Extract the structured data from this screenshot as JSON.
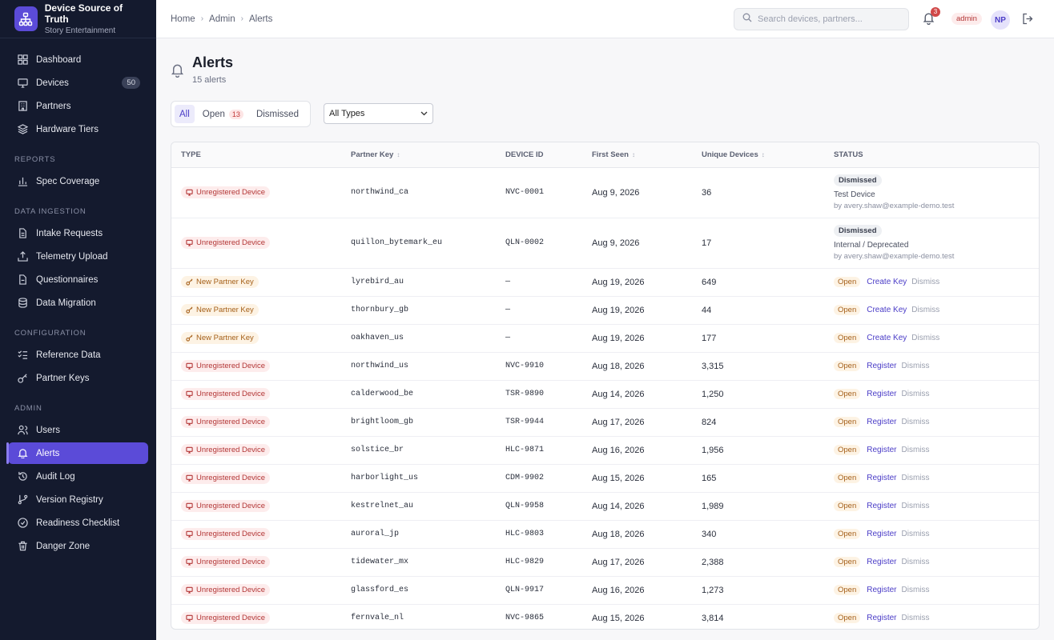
{
  "brand": {
    "title": "Device Source of Truth",
    "subtitle": "Story Entertainment"
  },
  "sidebar": {
    "main": [
      {
        "label": "Dashboard",
        "icon": "dashboard-icon"
      },
      {
        "label": "Devices",
        "icon": "monitor-icon",
        "badge": "50"
      },
      {
        "label": "Partners",
        "icon": "building-icon"
      },
      {
        "label": "Hardware Tiers",
        "icon": "layers-icon"
      }
    ],
    "reports_label": "REPORTS",
    "reports": [
      {
        "label": "Spec Coverage",
        "icon": "bar-chart-icon"
      }
    ],
    "ingestion_label": "DATA INGESTION",
    "ingestion": [
      {
        "label": "Intake Requests",
        "icon": "file-icon"
      },
      {
        "label": "Telemetry Upload",
        "icon": "upload-icon"
      },
      {
        "label": "Questionnaires",
        "icon": "clipboard-icon"
      },
      {
        "label": "Data Migration",
        "icon": "database-icon"
      }
    ],
    "config_label": "CONFIGURATION",
    "config": [
      {
        "label": "Reference Data",
        "icon": "list-check-icon"
      },
      {
        "label": "Partner Keys",
        "icon": "key-icon"
      }
    ],
    "admin_label": "ADMIN",
    "admin": [
      {
        "label": "Users",
        "icon": "users-icon"
      },
      {
        "label": "Alerts",
        "icon": "bell-icon",
        "active": true
      },
      {
        "label": "Audit Log",
        "icon": "history-icon"
      },
      {
        "label": "Version Registry",
        "icon": "git-branch-icon"
      },
      {
        "label": "Readiness Checklist",
        "icon": "check-circle-icon"
      },
      {
        "label": "Danger Zone",
        "icon": "trash-icon"
      }
    ]
  },
  "breadcrumb": [
    "Home",
    "Admin",
    "Alerts"
  ],
  "search": {
    "placeholder": "Search devices, partners..."
  },
  "notifications": {
    "count": "3"
  },
  "user": {
    "role": "admin",
    "initials": "NP"
  },
  "page": {
    "title": "Alerts",
    "subtitle": "15 alerts"
  },
  "filters": {
    "tabs": [
      {
        "label": "All",
        "active": true
      },
      {
        "label": "Open",
        "count": "13"
      },
      {
        "label": "Dismissed"
      }
    ],
    "type_select": "All Types"
  },
  "table": {
    "columns": [
      "TYPE",
      "Partner Key",
      "DEVICE ID",
      "First Seen",
      "Unique Devices",
      "STATUS"
    ],
    "rows": [
      {
        "type": "Unregistered Device",
        "kind": "unreg",
        "partner_key": "northwind_ca",
        "device_id": "NVC-0001",
        "first_seen": "Aug 9, 2026",
        "unique": "36",
        "status": "Dismissed",
        "reason": "Test Device",
        "by": "by avery.shaw@example-demo.test"
      },
      {
        "type": "Unregistered Device",
        "kind": "unreg",
        "partner_key": "quillon_bytemark_eu",
        "device_id": "QLN-0002",
        "first_seen": "Aug 9, 2026",
        "unique": "17",
        "status": "Dismissed",
        "reason": "Internal / Deprecated",
        "by": "by avery.shaw@example-demo.test"
      },
      {
        "type": "New Partner Key",
        "kind": "newkey",
        "partner_key": "lyrebird_au",
        "device_id": "—",
        "first_seen": "Aug 19, 2026",
        "unique": "649",
        "status": "Open",
        "action": "Create Key",
        "dismiss": "Dismiss"
      },
      {
        "type": "New Partner Key",
        "kind": "newkey",
        "partner_key": "thornbury_gb",
        "device_id": "—",
        "first_seen": "Aug 19, 2026",
        "unique": "44",
        "status": "Open",
        "action": "Create Key",
        "dismiss": "Dismiss"
      },
      {
        "type": "New Partner Key",
        "kind": "newkey",
        "partner_key": "oakhaven_us",
        "device_id": "—",
        "first_seen": "Aug 19, 2026",
        "unique": "177",
        "status": "Open",
        "action": "Create Key",
        "dismiss": "Dismiss"
      },
      {
        "type": "Unregistered Device",
        "kind": "unreg",
        "partner_key": "northwind_us",
        "device_id": "NVC-9910",
        "first_seen": "Aug 18, 2026",
        "unique": "3,315",
        "status": "Open",
        "action": "Register",
        "dismiss": "Dismiss"
      },
      {
        "type": "Unregistered Device",
        "kind": "unreg",
        "partner_key": "calderwood_be",
        "device_id": "TSR-9890",
        "first_seen": "Aug 14, 2026",
        "unique": "1,250",
        "status": "Open",
        "action": "Register",
        "dismiss": "Dismiss"
      },
      {
        "type": "Unregistered Device",
        "kind": "unreg",
        "partner_key": "brightloom_gb",
        "device_id": "TSR-9944",
        "first_seen": "Aug 17, 2026",
        "unique": "824",
        "status": "Open",
        "action": "Register",
        "dismiss": "Dismiss"
      },
      {
        "type": "Unregistered Device",
        "kind": "unreg",
        "partner_key": "solstice_br",
        "device_id": "HLC-9871",
        "first_seen": "Aug 16, 2026",
        "unique": "1,956",
        "status": "Open",
        "action": "Register",
        "dismiss": "Dismiss"
      },
      {
        "type": "Unregistered Device",
        "kind": "unreg",
        "partner_key": "harborlight_us",
        "device_id": "CDM-9902",
        "first_seen": "Aug 15, 2026",
        "unique": "165",
        "status": "Open",
        "action": "Register",
        "dismiss": "Dismiss"
      },
      {
        "type": "Unregistered Device",
        "kind": "unreg",
        "partner_key": "kestrelnet_au",
        "device_id": "QLN-9958",
        "first_seen": "Aug 14, 2026",
        "unique": "1,989",
        "status": "Open",
        "action": "Register",
        "dismiss": "Dismiss"
      },
      {
        "type": "Unregistered Device",
        "kind": "unreg",
        "partner_key": "auroral_jp",
        "device_id": "HLC-9803",
        "first_seen": "Aug 18, 2026",
        "unique": "340",
        "status": "Open",
        "action": "Register",
        "dismiss": "Dismiss"
      },
      {
        "type": "Unregistered Device",
        "kind": "unreg",
        "partner_key": "tidewater_mx",
        "device_id": "HLC-9829",
        "first_seen": "Aug 17, 2026",
        "unique": "2,388",
        "status": "Open",
        "action": "Register",
        "dismiss": "Dismiss"
      },
      {
        "type": "Unregistered Device",
        "kind": "unreg",
        "partner_key": "glassford_es",
        "device_id": "QLN-9917",
        "first_seen": "Aug 16, 2026",
        "unique": "1,273",
        "status": "Open",
        "action": "Register",
        "dismiss": "Dismiss"
      },
      {
        "type": "Unregistered Device",
        "kind": "unreg",
        "partner_key": "fernvale_nl",
        "device_id": "NVC-9865",
        "first_seen": "Aug 15, 2026",
        "unique": "3,814",
        "status": "Open",
        "action": "Register",
        "dismiss": "Dismiss"
      }
    ]
  }
}
